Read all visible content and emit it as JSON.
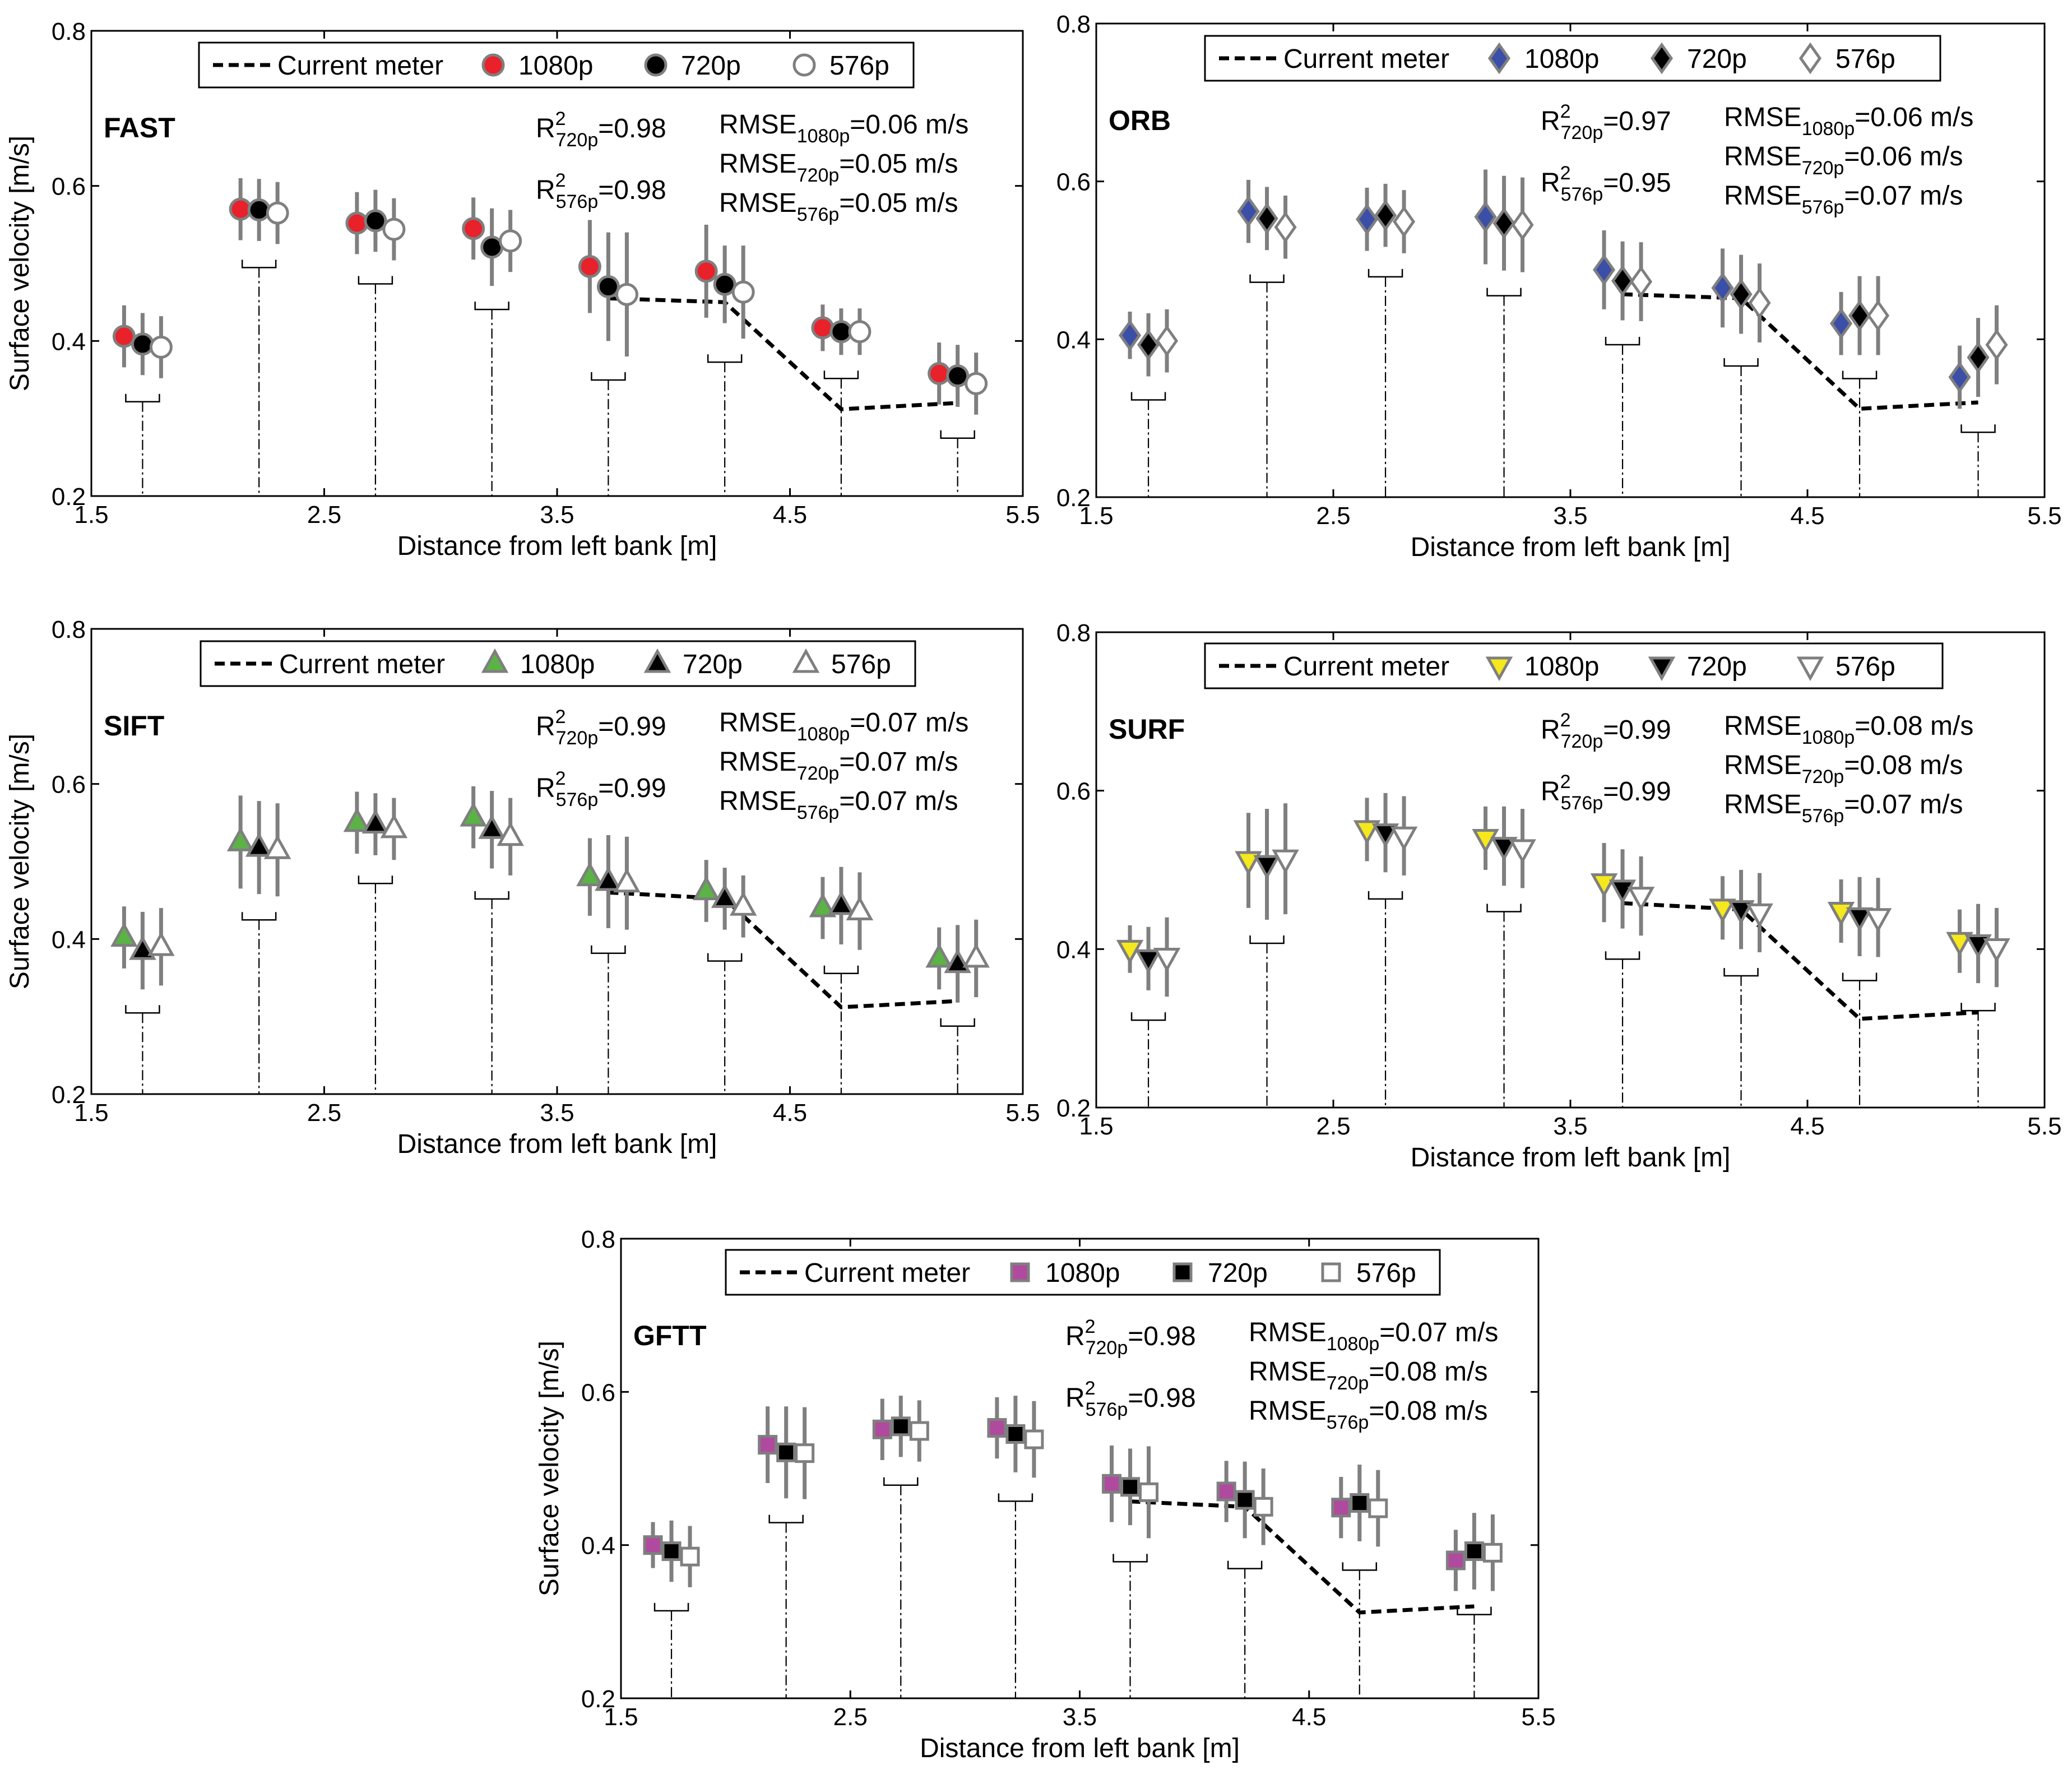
{
  "legend": {
    "current_meter": "Current meter",
    "res_1080": "1080p",
    "res_720": "720p",
    "res_576": "576p"
  },
  "colors": {
    "FAST": "#e8212a",
    "ORB": "#3b4fa8",
    "SIFT": "#5bb346",
    "SURF": "#f5e81c",
    "GFTT": "#b04a9e",
    "black": "#000000",
    "open": "#ffffff",
    "errorbar": "#7f7f7f"
  },
  "chart_data": [
    {
      "type": "scatter",
      "method": "FAST",
      "marker": "circle",
      "xlabel": "Distance from left bank [m]",
      "ylabel": "Surface velocity [m/s]",
      "xlim": [
        1.5,
        5.5
      ],
      "ylim": [
        0.2,
        0.8
      ],
      "xticks": [
        "1.5",
        "2.5",
        "3.5",
        "4.5",
        "5.5"
      ],
      "yticks": [
        "0.2",
        "0.4",
        "0.6",
        "0.8"
      ],
      "r2": [
        {
          "label": "R",
          "sup": "2",
          "sub": "720p",
          "value": "=0.98"
        },
        {
          "label": "R",
          "sup": "2",
          "sub": "576p",
          "value": "=0.98"
        }
      ],
      "rmse": [
        {
          "label": "RMSE",
          "sub": "1080p",
          "value": "=0.06 m/s"
        },
        {
          "label": "RMSE",
          "sub": "720p",
          "value": "=0.05 m/s"
        },
        {
          "label": "RMSE",
          "sub": "576p",
          "value": "=0.05 m/s"
        }
      ],
      "stations": [
        1.72,
        2.22,
        2.72,
        3.22,
        3.72,
        4.22,
        4.72,
        5.22
      ],
      "current_meter": {
        "x": [
          3.72,
          4.22,
          4.72,
          5.22
        ],
        "y": [
          0.455,
          0.45,
          0.312,
          0.32
        ]
      },
      "series": [
        {
          "name": "1080p",
          "values": [
            0.406,
            0.57,
            0.552,
            0.545,
            0.496,
            0.49,
            0.417,
            0.358
          ],
          "err": [
            0.04,
            0.04,
            0.04,
            0.04,
            0.06,
            0.06,
            0.03,
            0.04
          ]
        },
        {
          "name": "720p",
          "values": [
            0.396,
            0.569,
            0.555,
            0.521,
            0.47,
            0.473,
            0.412,
            0.355
          ],
          "err": [
            0.04,
            0.04,
            0.04,
            0.05,
            0.07,
            0.05,
            0.03,
            0.04
          ]
        },
        {
          "name": "576p",
          "values": [
            0.392,
            0.565,
            0.544,
            0.529,
            0.46,
            0.463,
            0.412,
            0.345
          ],
          "err": [
            0.04,
            0.04,
            0.04,
            0.04,
            0.08,
            0.06,
            0.03,
            0.04
          ]
        }
      ]
    },
    {
      "type": "scatter",
      "method": "ORB",
      "marker": "diamond",
      "xlabel": "Distance from left bank [m]",
      "ylabel": "",
      "xlim": [
        1.5,
        5.5
      ],
      "ylim": [
        0.2,
        0.8
      ],
      "xticks": [
        "1.5",
        "2.5",
        "3.5",
        "4.5",
        "5.5"
      ],
      "yticks": [
        "0.2",
        "0.4",
        "0.6",
        "0.8"
      ],
      "r2": [
        {
          "label": "R",
          "sup": "2",
          "sub": "720p",
          "value": "=0.97"
        },
        {
          "label": "R",
          "sup": "2",
          "sub": "576p",
          "value": "=0.95"
        }
      ],
      "rmse": [
        {
          "label": "RMSE",
          "sub": "1080p",
          "value": "=0.06 m/s"
        },
        {
          "label": "RMSE",
          "sub": "720p",
          "value": "=0.06 m/s"
        },
        {
          "label": "RMSE",
          "sub": "576p",
          "value": "=0.07 m/s"
        }
      ],
      "stations": [
        1.72,
        2.22,
        2.72,
        3.22,
        3.72,
        4.22,
        4.72,
        5.22
      ],
      "current_meter": {
        "x": [
          3.72,
          4.22,
          4.72,
          5.22
        ],
        "y": [
          0.457,
          0.452,
          0.312,
          0.32
        ]
      },
      "series": [
        {
          "name": "1080p",
          "values": [
            0.405,
            0.562,
            0.552,
            0.555,
            0.488,
            0.465,
            0.42,
            0.352
          ],
          "err": [
            0.03,
            0.04,
            0.04,
            0.06,
            0.05,
            0.05,
            0.04,
            0.04
          ]
        },
        {
          "name": "720p",
          "values": [
            0.393,
            0.553,
            0.557,
            0.547,
            0.474,
            0.457,
            0.43,
            0.377
          ],
          "err": [
            0.04,
            0.04,
            0.04,
            0.06,
            0.05,
            0.05,
            0.05,
            0.05
          ]
        },
        {
          "name": "576p",
          "values": [
            0.398,
            0.542,
            0.549,
            0.545,
            0.473,
            0.446,
            0.43,
            0.393
          ],
          "err": [
            0.04,
            0.04,
            0.04,
            0.06,
            0.05,
            0.05,
            0.05,
            0.05
          ]
        }
      ]
    },
    {
      "type": "scatter",
      "method": "SIFT",
      "marker": "triangle-up",
      "xlabel": "Distance from left bank [m]",
      "ylabel": "Surface velocity [m/s]",
      "xlim": [
        1.5,
        5.5
      ],
      "ylim": [
        0.2,
        0.8
      ],
      "xticks": [
        "1.5",
        "2.5",
        "3.5",
        "4.5",
        "5.5"
      ],
      "yticks": [
        "0.2",
        "0.4",
        "0.6",
        "0.8"
      ],
      "r2": [
        {
          "label": "R",
          "sup": "2",
          "sub": "720p",
          "value": "=0.99"
        },
        {
          "label": "R",
          "sup": "2",
          "sub": "576p",
          "value": "=0.99"
        }
      ],
      "rmse": [
        {
          "label": "RMSE",
          "sub": "1080p",
          "value": "=0.07 m/s"
        },
        {
          "label": "RMSE",
          "sub": "720p",
          "value": "=0.07 m/s"
        },
        {
          "label": "RMSE",
          "sub": "576p",
          "value": "=0.07 m/s"
        }
      ],
      "stations": [
        1.72,
        2.22,
        2.72,
        3.22,
        3.72,
        4.22,
        4.72,
        5.22
      ],
      "current_meter": {
        "x": [
          3.72,
          4.22,
          4.72,
          5.22
        ],
        "y": [
          0.46,
          0.452,
          0.312,
          0.32
        ]
      },
      "series": [
        {
          "name": "1080p",
          "values": [
            0.402,
            0.525,
            0.55,
            0.557,
            0.48,
            0.462,
            0.44,
            0.375
          ],
          "err": [
            0.04,
            0.06,
            0.04,
            0.04,
            0.05,
            0.04,
            0.04,
            0.04
          ]
        },
        {
          "name": "720p",
          "values": [
            0.385,
            0.518,
            0.548,
            0.541,
            0.474,
            0.452,
            0.443,
            0.368
          ],
          "err": [
            0.05,
            0.06,
            0.04,
            0.05,
            0.06,
            0.04,
            0.05,
            0.05
          ]
        },
        {
          "name": "576p",
          "values": [
            0.39,
            0.515,
            0.542,
            0.532,
            0.472,
            0.442,
            0.436,
            0.375
          ],
          "err": [
            0.05,
            0.06,
            0.04,
            0.05,
            0.06,
            0.04,
            0.05,
            0.05
          ]
        }
      ]
    },
    {
      "type": "scatter",
      "method": "SURF",
      "marker": "triangle-down",
      "xlabel": "Distance from left bank [m]",
      "ylabel": "",
      "xlim": [
        1.5,
        5.5
      ],
      "ylim": [
        0.2,
        0.8
      ],
      "xticks": [
        "1.5",
        "2.5",
        "3.5",
        "4.5",
        "5.5"
      ],
      "yticks": [
        "0.2",
        "0.4",
        "0.6",
        "0.8"
      ],
      "r2": [
        {
          "label": "R",
          "sup": "2",
          "sub": "720p",
          "value": "=0.99"
        },
        {
          "label": "R",
          "sup": "2",
          "sub": "576p",
          "value": "=0.99"
        }
      ],
      "rmse": [
        {
          "label": "RMSE",
          "sub": "1080p",
          "value": "=0.08 m/s"
        },
        {
          "label": "RMSE",
          "sub": "720p",
          "value": "=0.08 m/s"
        },
        {
          "label": "RMSE",
          "sub": "576p",
          "value": "=0.07 m/s"
        }
      ],
      "stations": [
        1.72,
        2.22,
        2.72,
        3.22,
        3.72,
        4.22,
        4.72,
        5.22
      ],
      "current_meter": {
        "x": [
          3.72,
          4.22,
          4.72,
          5.22
        ],
        "y": [
          0.458,
          0.45,
          0.312,
          0.32
        ]
      },
      "series": [
        {
          "name": "1080p",
          "values": [
            0.4,
            0.512,
            0.551,
            0.54,
            0.484,
            0.452,
            0.448,
            0.41
          ],
          "err": [
            0.03,
            0.06,
            0.04,
            0.04,
            0.05,
            0.04,
            0.04,
            0.04
          ]
        },
        {
          "name": "720p",
          "values": [
            0.388,
            0.507,
            0.547,
            0.53,
            0.476,
            0.45,
            0.441,
            0.407
          ],
          "err": [
            0.04,
            0.07,
            0.05,
            0.05,
            0.05,
            0.05,
            0.05,
            0.05
          ]
        },
        {
          "name": "576p",
          "values": [
            0.39,
            0.514,
            0.543,
            0.527,
            0.467,
            0.446,
            0.44,
            0.402
          ],
          "err": [
            0.05,
            0.07,
            0.05,
            0.05,
            0.05,
            0.05,
            0.05,
            0.05
          ]
        }
      ]
    },
    {
      "type": "scatter",
      "method": "GFTT",
      "marker": "square",
      "xlabel": "Distance from left bank [m]",
      "ylabel": "Surface velocity [m/s]",
      "xlim": [
        1.5,
        5.5
      ],
      "ylim": [
        0.2,
        0.8
      ],
      "xticks": [
        "1.5",
        "2.5",
        "3.5",
        "4.5",
        "5.5"
      ],
      "yticks": [
        "0.2",
        "0.4",
        "0.6",
        "0.8"
      ],
      "r2": [
        {
          "label": "R",
          "sup": "2",
          "sub": "720p",
          "value": "=0.98"
        },
        {
          "label": "R",
          "sup": "2",
          "sub": "576p",
          "value": "=0.98"
        }
      ],
      "rmse": [
        {
          "label": "RMSE",
          "sub": "1080p",
          "value": "=0.07 m/s"
        },
        {
          "label": "RMSE",
          "sub": "720p",
          "value": "=0.08 m/s"
        },
        {
          "label": "RMSE",
          "sub": "576p",
          "value": "=0.08 m/s"
        }
      ],
      "stations": [
        1.72,
        2.22,
        2.72,
        3.22,
        3.72,
        4.22,
        4.72,
        5.22
      ],
      "current_meter": {
        "x": [
          3.72,
          4.22,
          4.72,
          5.22
        ],
        "y": [
          0.457,
          0.45,
          0.312,
          0.32
        ]
      },
      "series": [
        {
          "name": "1080p",
          "values": [
            0.4,
            0.531,
            0.551,
            0.553,
            0.48,
            0.47,
            0.449,
            0.38
          ],
          "err": [
            0.03,
            0.05,
            0.04,
            0.04,
            0.05,
            0.04,
            0.04,
            0.04
          ]
        },
        {
          "name": "720p",
          "values": [
            0.392,
            0.521,
            0.555,
            0.545,
            0.476,
            0.459,
            0.455,
            0.392
          ],
          "err": [
            0.04,
            0.06,
            0.04,
            0.05,
            0.05,
            0.05,
            0.05,
            0.05
          ]
        },
        {
          "name": "576p",
          "values": [
            0.385,
            0.52,
            0.549,
            0.538,
            0.469,
            0.45,
            0.448,
            0.39
          ],
          "err": [
            0.04,
            0.06,
            0.04,
            0.05,
            0.06,
            0.05,
            0.05,
            0.05
          ]
        }
      ]
    }
  ]
}
